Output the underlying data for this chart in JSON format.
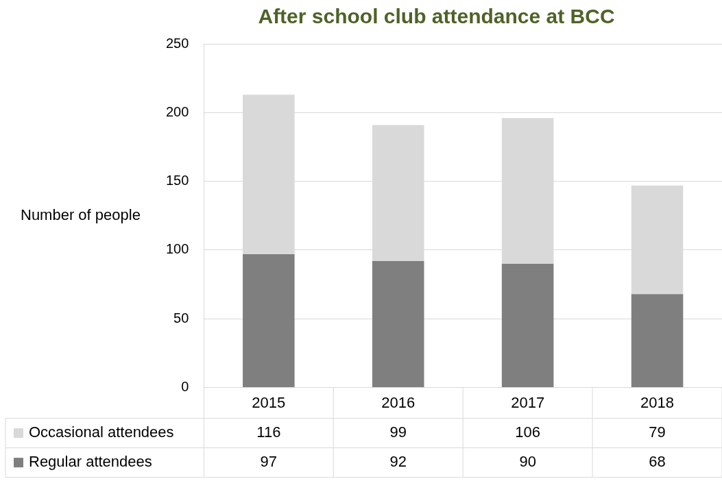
{
  "chart_data": {
    "type": "bar",
    "title": "After school club attendance at BCC",
    "ylabel": "Number of people",
    "categories": [
      "2015",
      "2016",
      "2017",
      "2018"
    ],
    "series": [
      {
        "name": "Regular attendees",
        "color": "#7f7f7f",
        "values": [
          97,
          92,
          90,
          68
        ]
      },
      {
        "name": "Occasional attendees",
        "color": "#d9d9d9",
        "values": [
          116,
          99,
          106,
          79
        ]
      }
    ],
    "stacked": true,
    "ylim": [
      0,
      250
    ],
    "yticks": [
      0,
      50,
      100,
      150,
      200,
      250
    ],
    "grid": "y",
    "legend": "bottom",
    "data_labels": true
  }
}
